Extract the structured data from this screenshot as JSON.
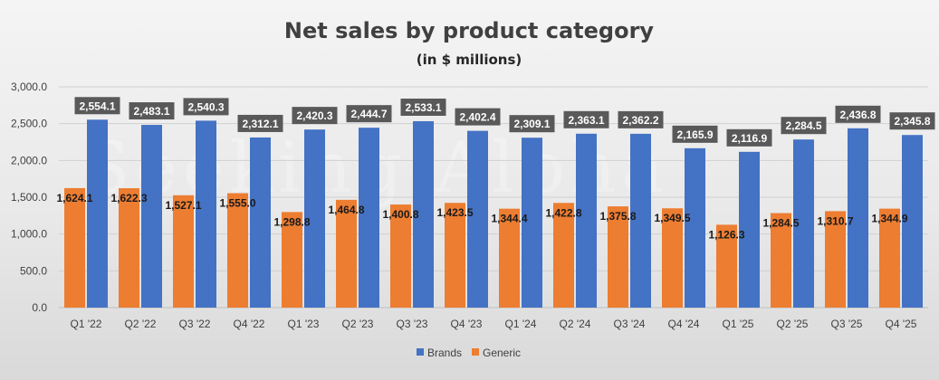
{
  "chart_data": {
    "type": "bar",
    "title": "Net sales by product category",
    "subtitle": "(in $ millions)",
    "xlabel": "",
    "ylabel": "",
    "ylim": [
      0,
      3000
    ],
    "yticks": [
      0,
      500,
      1000,
      1500,
      2000,
      2500,
      3000
    ],
    "ytick_labels": [
      "0.0",
      "500.0",
      "1,000.0",
      "1,500.0",
      "2,000.0",
      "2,500.0",
      "3,000.0"
    ],
    "grid": true,
    "legend_position": "bottom",
    "categories": [
      "Q1 '22",
      "Q2 '22",
      "Q3 '22",
      "Q4 '22",
      "Q1 '23",
      "Q2 '23",
      "Q3 '23",
      "Q4 '23",
      "Q1 '24",
      "Q2 '24",
      "Q3 '24",
      "Q4 '24",
      "Q1 '25",
      "Q2 '25",
      "Q3 '25",
      "Q4 '25"
    ],
    "series": [
      {
        "name": "Generic",
        "color": "#ED7D31",
        "values": [
          1624.1,
          1622.3,
          1527.1,
          1555.0,
          1298.8,
          1464.8,
          1400.8,
          1423.5,
          1344.4,
          1422.8,
          1375.8,
          1349.5,
          1126.3,
          1284.5,
          1310.7,
          1344.9
        ],
        "labels": [
          "1,624.1",
          "1,622.3",
          "1,527.1",
          "1,555.0",
          "1,298.8",
          "1,464.8",
          "1,400.8",
          "1,423.5",
          "1,344.4",
          "1,422.8",
          "1,375.8",
          "1,349.5",
          "1,126.3",
          "1,284.5",
          "1,310.7",
          "1,344.9"
        ]
      },
      {
        "name": "Brands",
        "color": "#4472C4",
        "label_bg_color": "#595959",
        "values": [
          2554.1,
          2483.1,
          2540.3,
          2312.1,
          2420.3,
          2444.7,
          2533.1,
          2402.4,
          2309.1,
          2363.1,
          2362.2,
          2165.9,
          2116.9,
          2284.5,
          2436.8,
          2345.8
        ],
        "labels": [
          "2,554.1",
          "2,483.1",
          "2,540.3",
          "2,312.1",
          "2,420.3",
          "2,444.7",
          "2,533.1",
          "2,402.4",
          "2,309.1",
          "2,363.1",
          "2,362.2",
          "2,165.9",
          "2,116.9",
          "2,284.5",
          "2,436.8",
          "2,345.8"
        ]
      }
    ],
    "legend": [
      "Brands",
      "Generic"
    ],
    "watermark": "Seeking Alpha"
  }
}
